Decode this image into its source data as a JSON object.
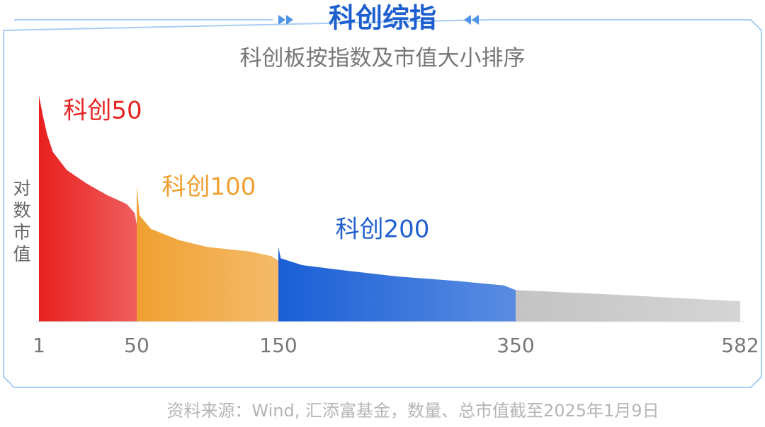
{
  "chart_data": {
    "type": "area",
    "title": "科创综指",
    "subtitle": "科创板按指数及市值大小排序",
    "y_label": "对数市值",
    "source": "资料来源：Wind, 汇添富基金，数量、总市值截至2025年1月9日",
    "xticks": [
      1,
      50,
      150,
      350,
      582
    ],
    "ylim": [
      0,
      100
    ],
    "series": [
      {
        "name": "科创50",
        "color": "#e8201f",
        "x": [
          1,
          3,
          5,
          8,
          15,
          25,
          35,
          45,
          49,
          50
        ],
        "values": [
          100,
          91,
          83,
          75,
          67,
          61,
          56,
          52,
          48,
          43
        ]
      },
      {
        "name": "科创100",
        "color": "#f0a030",
        "x": [
          50,
          52,
          60,
          80,
          100,
          130,
          145,
          150
        ],
        "values": [
          60,
          47,
          41,
          36,
          33,
          31,
          29,
          27
        ]
      },
      {
        "name": "科创200",
        "color": "#1a5fd6",
        "x": [
          150,
          152,
          170,
          200,
          250,
          300,
          340,
          350
        ],
        "values": [
          33,
          28,
          25,
          23,
          20,
          18,
          16,
          14
        ]
      },
      {
        "color": "#c4c4c4",
        "x": [
          350,
          450,
          582
        ],
        "values": [
          14,
          12,
          9
        ]
      }
    ]
  }
}
